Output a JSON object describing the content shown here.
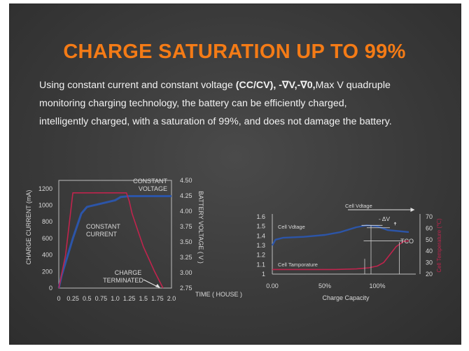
{
  "title": "CHARGE SATURATION UP TO 99%",
  "description": {
    "line1_pre": "Using constant current and constant voltage ",
    "line1_bold": "(CC/CV), -∇V,-∇0,",
    "line1_post": "Max V quadruple",
    "line2": "monitoring charging technology, the battery can be efficiently charged,",
    "line3": "intelligently charged, with a saturation of 99%, and does not damage the battery."
  },
  "colors": {
    "accent": "#f47b16",
    "current": "#2c55a8",
    "voltage": "#c0244d",
    "text": "#d9d9d9"
  },
  "chart_data": [
    {
      "type": "line",
      "title": "",
      "xlabel": "TIME ( HOUSE )",
      "ylabel": "CHARGE CURRENT (mA)",
      "y2label": "BATTERY VOLTAGE ( V )",
      "x_ticks": [
        "0",
        "0.25",
        "0.5",
        "0.75",
        "1.0",
        "1.25",
        "1.5",
        "1.75",
        "2.0"
      ],
      "y_ticks": [
        "0",
        "200",
        "400",
        "600",
        "800",
        "1000",
        "1200"
      ],
      "y2_ticks": [
        "2.75",
        "3.00",
        "3.25",
        "3.50",
        "3.75",
        "4.00",
        "4.25",
        "4.50"
      ],
      "xlim": [
        0,
        2.0
      ],
      "ylim": [
        0,
        1300
      ],
      "y2lim": [
        2.75,
        4.5
      ],
      "annotations": {
        "constant_voltage": [
          "CONSTANT",
          "VOLTAGE"
        ],
        "constant_current": [
          "CONSTANT",
          "CURRENT"
        ],
        "charge_terminated": [
          "CHARGE",
          "TERMINATED"
        ]
      },
      "series": [
        {
          "name": "",
          "axis": "left",
          "color": "current",
          "x": [
            0,
            0.05,
            0.25,
            0.4,
            0.5,
            0.75,
            1.0,
            1.1,
            1.25,
            1.35,
            1.5,
            1.75,
            1.85,
            2.0
          ],
          "y": [
            0,
            150,
            600,
            900,
            980,
            1020,
            1060,
            1100,
            1110,
            1110,
            1110,
            1110,
            1110,
            1110
          ]
        },
        {
          "name": "",
          "axis": "left",
          "color": "voltage",
          "x": [
            0,
            0.12,
            0.25,
            0.5,
            0.75,
            1.0,
            1.15,
            1.2,
            1.25,
            1.3,
            1.4,
            1.5,
            1.6,
            1.7,
            1.85
          ],
          "y": [
            0,
            400,
            1150,
            1150,
            1150,
            1150,
            1150,
            1150,
            1050,
            900,
            700,
            500,
            350,
            200,
            0
          ]
        }
      ]
    },
    {
      "type": "line",
      "title": "",
      "xlabel": "Charge Capacity",
      "ylabel": "",
      "y2label": "Cell Temperature (℃)",
      "x_ticks": [
        "0.00",
        "50%",
        "100%"
      ],
      "y_ticks": [
        "1",
        "1.1",
        "1.2",
        "1.3",
        "1.4",
        "1.5",
        "1.6"
      ],
      "y2_ticks": [
        "20",
        "30",
        "40",
        "50",
        "60",
        "70"
      ],
      "xlim": [
        0,
        1.3
      ],
      "ylim": [
        1,
        1.6
      ],
      "y2lim": [
        20,
        70
      ],
      "annotations": {
        "cell_voltage_top": "Cell Vdtage",
        "cell_voltage": "Cell Vdtage",
        "cell_temperature": "Cell Tamporature",
        "delta_v": "- ΔV",
        "tco": "TCO"
      },
      "series": [
        {
          "name": "",
          "axis": "left",
          "color": "current",
          "x": [
            0,
            0.03,
            0.1,
            0.3,
            0.5,
            0.65,
            0.8,
            0.9,
            1.0,
            1.05,
            1.1,
            1.2,
            1.3
          ],
          "y": [
            1.3,
            1.36,
            1.38,
            1.39,
            1.41,
            1.44,
            1.49,
            1.51,
            1.5,
            1.48,
            1.46,
            1.45,
            1.44
          ]
        },
        {
          "name": "",
          "axis": "right",
          "color": "voltage",
          "x": [
            0,
            0.2,
            0.4,
            0.6,
            0.8,
            0.92,
            1.0,
            1.06,
            1.12,
            1.18,
            1.25,
            1.3
          ],
          "y": [
            24,
            24,
            24,
            24,
            24.5,
            25.5,
            27,
            30,
            37,
            44,
            48.5,
            49
          ]
        }
      ]
    }
  ]
}
